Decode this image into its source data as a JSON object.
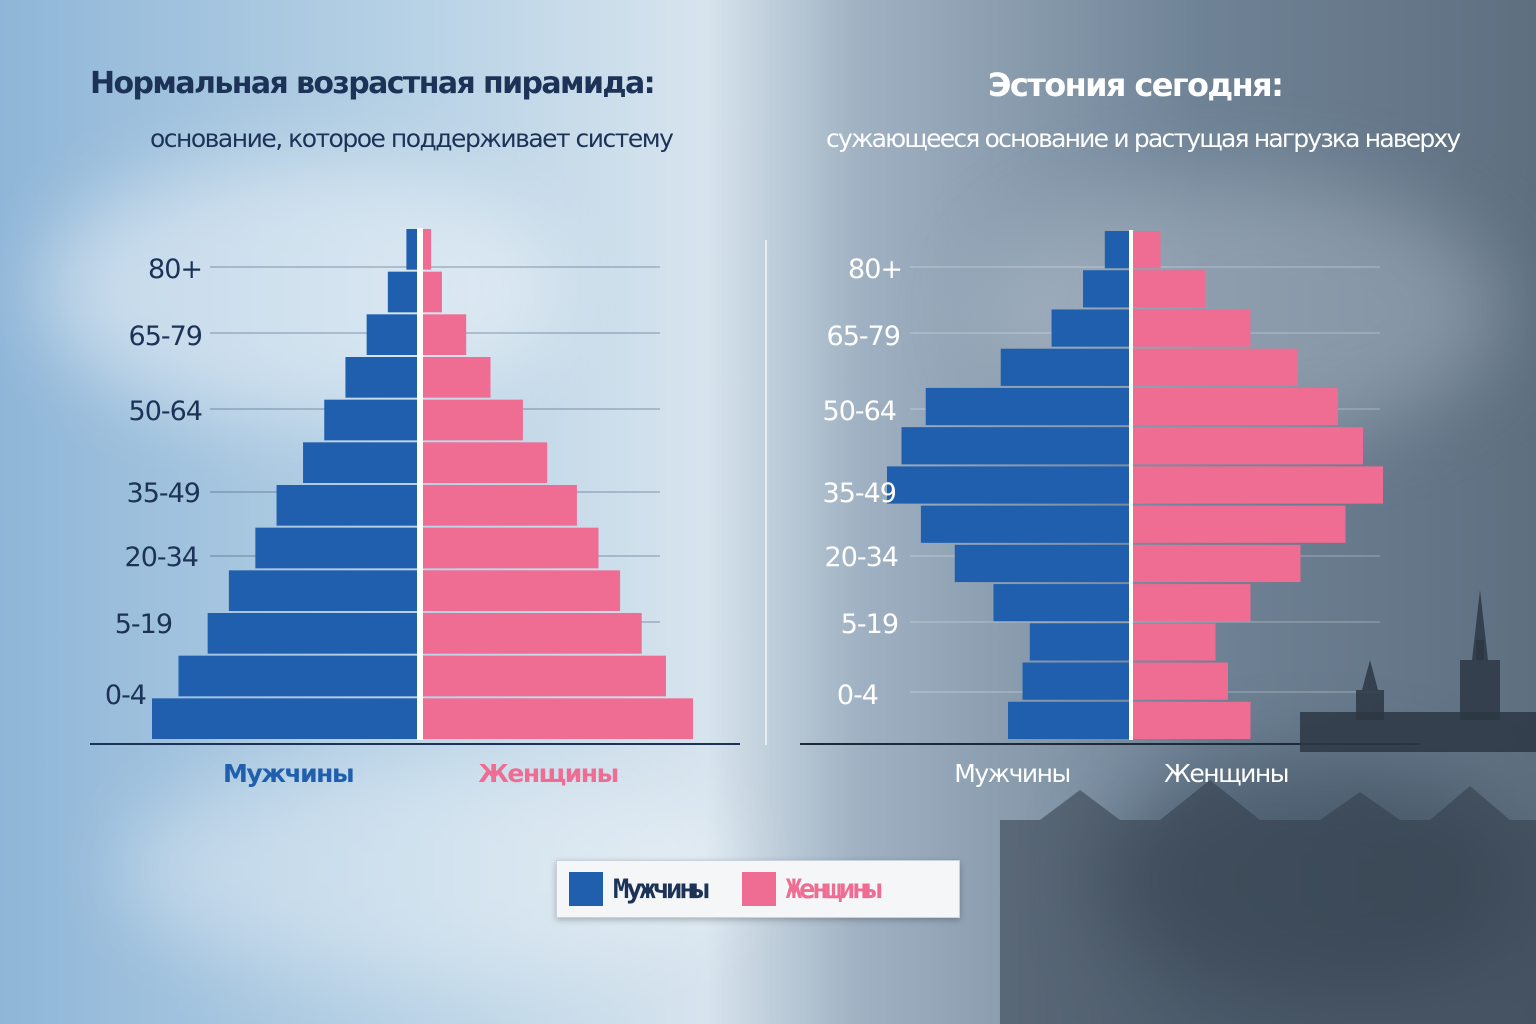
{
  "colors": {
    "male": "#1f5fae",
    "female": "#ef6c92",
    "left_title": "#1c3357",
    "right_title": "#ffffff"
  },
  "legend": {
    "male_label": "Мужчины",
    "female_label": "Женщины"
  },
  "chart_data": [
    {
      "type": "bar",
      "orientation": "population-pyramid",
      "title": "Нормальная возрастная пирамида:",
      "subtitle": "основание, которое поддерживает систему",
      "tick_labels": [
        "0-4",
        "5-19",
        "20-34",
        "35-49",
        "50-64",
        "65-79",
        "80+"
      ],
      "series_labels": {
        "male": "Мужчины",
        "female": "Женщины"
      },
      "note": "relative bar widths, bottom to top (no numeric values shown)",
      "male_values": [
        100,
        90,
        79,
        71,
        61,
        53,
        43,
        35,
        27,
        19,
        11,
        4
      ],
      "female_values": [
        100,
        90,
        81,
        73,
        65,
        57,
        46,
        37,
        25,
        16,
        7,
        3
      ]
    },
    {
      "type": "bar",
      "orientation": "population-pyramid",
      "title": "Эстония сегодня:",
      "subtitle": "сужающееся основание и растущая нагрузка наверху",
      "tick_labels": [
        "0-4",
        "5-19",
        "20-34",
        "35-49",
        "50-64",
        "65-79",
        "80+"
      ],
      "series_labels": {
        "male": "Мужчины",
        "female": "Женщины"
      },
      "note": "relative bar widths, bottom to top (no numeric values shown)",
      "male_values": [
        50,
        44,
        41,
        56,
        72,
        86,
        100,
        94,
        84,
        53,
        32,
        19,
        10
      ],
      "female_values": [
        47,
        38,
        33,
        47,
        67,
        85,
        100,
        92,
        82,
        66,
        47,
        29,
        11
      ]
    }
  ]
}
